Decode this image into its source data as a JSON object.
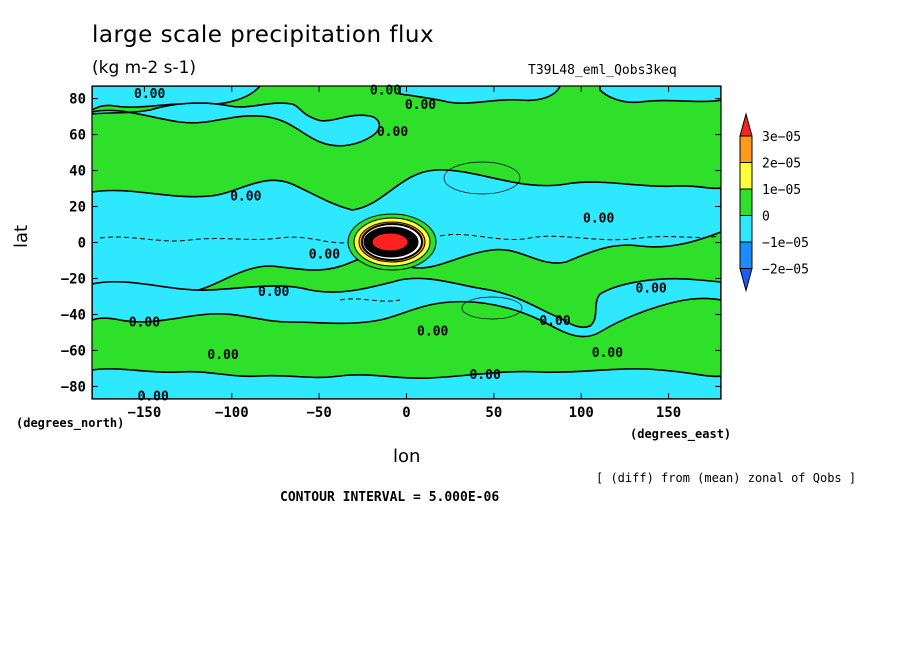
{
  "chart_data": {
    "type": "contour",
    "title": "large scale precipitation flux",
    "units": "(kg m-2 s-1)",
    "run_label": "T39L48_eml_Qobs3keq",
    "xlabel": "lon",
    "xlabel_units": "(degrees_east)",
    "ylabel": "lat",
    "ylabel_units": "(degrees_north)",
    "note": "[ (diff) from (mean) zonal of Qobs ]",
    "contour_interval_text": "CONTOUR INTERVAL = 5.000E-06",
    "xlim": [
      -180,
      180
    ],
    "ylim": [
      -87,
      87
    ],
    "x_ticks": [
      -150,
      -100,
      -50,
      0,
      50,
      100,
      150
    ],
    "y_ticks": [
      -80,
      -60,
      -40,
      -20,
      0,
      20,
      40,
      60,
      80
    ],
    "x_tick_labels": [
      "−150",
      "−100",
      "−50",
      "0",
      "50",
      "100",
      "150"
    ],
    "y_tick_labels": [
      "−80",
      "−60",
      "−40",
      "−20",
      "0",
      "20",
      "40",
      "60",
      "80"
    ],
    "legend": {
      "placement": "right",
      "labels": [
        "3e−05",
        "2e−05",
        "1e−05",
        "0",
        "−1e−05",
        "−2e−05"
      ],
      "colors": [
        "#ff2020",
        "#ff9a1a",
        "#ffff3a",
        "#2ee02a",
        "#2ee8ff",
        "#1c8cff",
        "#1c5cff"
      ]
    },
    "contour_labels": [
      {
        "text": "0.00",
        "lon": -147,
        "lat": 83
      },
      {
        "text": "0.00",
        "lon": -12,
        "lat": 85
      },
      {
        "text": "0.00",
        "lon": 8,
        "lat": 77
      },
      {
        "text": "0.00",
        "lon": -8,
        "lat": 62
      },
      {
        "text": "0.00",
        "lon": -92,
        "lat": 26
      },
      {
        "text": "0.00",
        "lon": 110,
        "lat": 14
      },
      {
        "text": "0.00",
        "lon": -47,
        "lat": -6
      },
      {
        "text": "0.00",
        "lon": -76,
        "lat": -27
      },
      {
        "text": "0.00",
        "lon": -150,
        "lat": -44
      },
      {
        "text": "0.00",
        "lon": 15,
        "lat": -49
      },
      {
        "text": "0.00",
        "lon": 85,
        "lat": -43
      },
      {
        "text": "0.00",
        "lon": 140,
        "lat": -25
      },
      {
        "text": "0.00",
        "lon": -105,
        "lat": -62
      },
      {
        "text": "0.00",
        "lon": 115,
        "lat": -61
      },
      {
        "text": "0.00",
        "lon": 45,
        "lat": -73
      },
      {
        "text": "0.00",
        "lon": -145,
        "lat": -85
      }
    ],
    "features": [
      {
        "name": "precipitation maximum",
        "lon": -10,
        "lat": 0,
        "level": "3e-05"
      }
    ]
  }
}
